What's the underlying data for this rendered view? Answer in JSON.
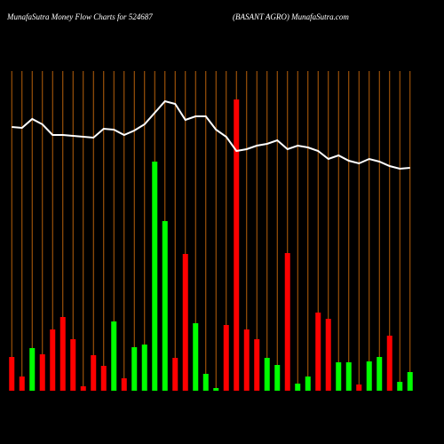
{
  "chart_data": {
    "type": "bar-line",
    "title": "MunafaSutra  Money Flow  Charts for 524687",
    "subtitle": "(BASANT AGRO) MunafaSutra.com",
    "categories": [
      null,
      null,
      null,
      null,
      null,
      null,
      null,
      null,
      null,
      null,
      null,
      null,
      null,
      null,
      null,
      null,
      null,
      null,
      null,
      null,
      null,
      null,
      null,
      null,
      null,
      null,
      null,
      null,
      null,
      null,
      null,
      null,
      null,
      null,
      null,
      null,
      null,
      null,
      null,
      null
    ],
    "values": [
      38,
      16,
      48,
      41,
      69,
      83,
      58,
      5,
      40,
      28,
      78,
      14,
      49,
      52,
      258,
      191,
      37,
      154,
      76,
      19,
      3,
      74,
      328,
      69,
      58,
      37,
      29,
      155,
      8,
      16,
      88,
      81,
      32,
      32,
      7,
      33,
      38,
      62,
      10,
      21
    ],
    "colors": [
      "#ff0000",
      "#ff0000",
      "#00ff00",
      "#ff0000",
      "#ff0000",
      "#ff0000",
      "#ff0000",
      "#ff0000",
      "#ff0000",
      "#ff0000",
      "#00ff00",
      "#ff0000",
      "#00ff00",
      "#00ff00",
      "#00ff00",
      "#00ff00",
      "#ff0000",
      "#ff0000",
      "#00ff00",
      "#00ff00",
      "#00ff00",
      "#ff0000",
      "#ff0000",
      "#ff0000",
      "#ff0000",
      "#00ff00",
      "#00ff00",
      "#ff0000",
      "#00ff00",
      "#00ff00",
      "#ff0000",
      "#ff0000",
      "#00ff00",
      "#00ff00",
      "#ff0000",
      "#00ff00",
      "#00ff00",
      "#ff0000",
      "#00ff00",
      "#00ff00"
    ],
    "line": {
      "color": "#ffffff",
      "values": [
        297,
        296,
        306,
        300,
        288,
        288,
        287,
        286,
        285,
        295,
        294,
        288,
        293,
        300,
        313,
        326,
        323,
        305,
        309,
        309,
        294,
        286,
        270,
        272,
        276,
        278,
        282,
        272,
        276,
        274,
        270,
        261,
        265,
        259,
        256,
        261,
        258,
        253,
        250,
        251
      ]
    },
    "ylim": [
      0,
      340
    ],
    "grid_color": "#b8600b"
  }
}
